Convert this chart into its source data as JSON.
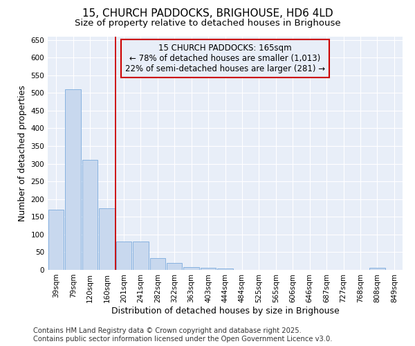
{
  "title": "15, CHURCH PADDOCKS, BRIGHOUSE, HD6 4LD",
  "subtitle": "Size of property relative to detached houses in Brighouse",
  "xlabel": "Distribution of detached houses by size in Brighouse",
  "ylabel": "Number of detached properties",
  "categories": [
    "39sqm",
    "79sqm",
    "120sqm",
    "160sqm",
    "201sqm",
    "241sqm",
    "282sqm",
    "322sqm",
    "363sqm",
    "403sqm",
    "444sqm",
    "484sqm",
    "525sqm",
    "565sqm",
    "606sqm",
    "646sqm",
    "687sqm",
    "727sqm",
    "768sqm",
    "808sqm",
    "849sqm"
  ],
  "values": [
    170,
    510,
    310,
    175,
    80,
    80,
    33,
    20,
    8,
    5,
    3,
    0,
    0,
    0,
    0,
    0,
    0,
    0,
    0,
    5,
    0
  ],
  "bar_color": "#c8d8ee",
  "bar_edge_color": "#7aaadd",
  "vline_x": 3.5,
  "vline_color": "#cc0000",
  "annotation_text": "15 CHURCH PADDOCKS: 165sqm\n← 78% of detached houses are smaller (1,013)\n22% of semi-detached houses are larger (281) →",
  "annotation_box_color": "#cc0000",
  "ylim": [
    0,
    660
  ],
  "yticks": [
    0,
    50,
    100,
    150,
    200,
    250,
    300,
    350,
    400,
    450,
    500,
    550,
    600,
    650
  ],
  "footer": "Contains HM Land Registry data © Crown copyright and database right 2025.\nContains public sector information licensed under the Open Government Licence v3.0.",
  "fig_bg_color": "#ffffff",
  "plot_bg_color": "#e8eef8",
  "grid_color": "#ffffff",
  "title_fontsize": 11,
  "subtitle_fontsize": 9.5,
  "tick_fontsize": 7.5,
  "label_fontsize": 9,
  "footer_fontsize": 7.2,
  "ann_fontsize": 8.5
}
